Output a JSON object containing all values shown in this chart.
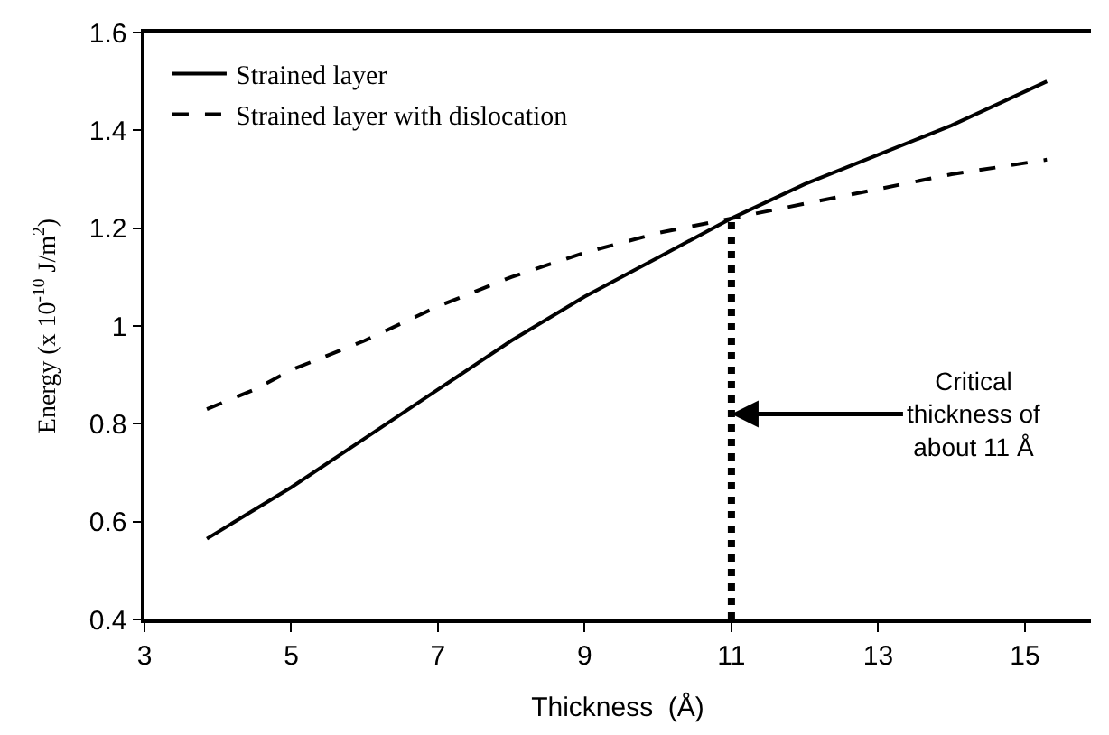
{
  "chart_data": {
    "type": "line",
    "xlabel": "Thickness  (Å)",
    "ylabel": "Energy (x 10$^{-10}$ J/m$^{2}$)",
    "xlim": [
      3,
      15.9
    ],
    "xticks": [
      3,
      5,
      7,
      9,
      11,
      13,
      15
    ],
    "ylim": [
      0.4,
      1.6
    ],
    "yticks": [
      0.4,
      0.6,
      0.8,
      1,
      1.2,
      1.4,
      1.6
    ],
    "legend": "top left",
    "marker": "none",
    "series": [
      {
        "name": "Strained layer",
        "color": "#000000",
        "line_style": "solid",
        "x": [
          3.85,
          5,
          6,
          7,
          8,
          9,
          10,
          11,
          12,
          13,
          14,
          15.3
        ],
        "values": [
          0.565,
          0.67,
          0.77,
          0.87,
          0.97,
          1.06,
          1.14,
          1.22,
          1.29,
          1.35,
          1.41,
          1.5
        ]
      },
      {
        "name": "Strained layer with dislocation",
        "color": "#000000",
        "line_style": "dashed",
        "x": [
          3.85,
          4.5,
          5,
          6,
          7,
          8,
          9,
          10,
          11,
          12,
          13,
          14,
          15.3
        ],
        "values": [
          0.83,
          0.87,
          0.91,
          0.97,
          1.04,
          1.1,
          1.15,
          1.19,
          1.22,
          1.25,
          1.28,
          1.31,
          1.34
        ]
      }
    ],
    "ref_lines": [
      {
        "axis": "x",
        "value": 11,
        "label": null,
        "color": "#000000",
        "line_style": "dotted"
      }
    ],
    "annotations": [
      {
        "text": "Critical\nthickness of\nabout 11 Å",
        "x": 11,
        "y": 0.82
      }
    ]
  }
}
